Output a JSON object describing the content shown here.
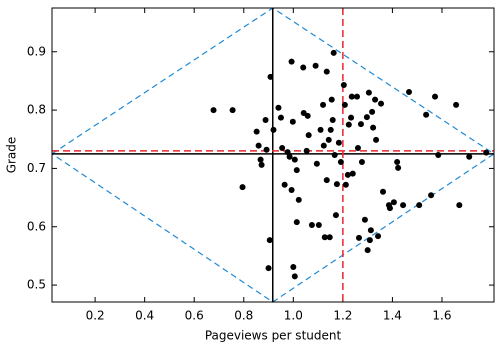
{
  "chart_data": {
    "type": "scatter",
    "xlabel": "Pageviews per student",
    "ylabel": "Grade",
    "xlim": [
      0.026,
      1.81
    ],
    "ylim": [
      0.471,
      0.975
    ],
    "xticks": [
      0.2,
      0.4,
      0.6,
      0.8,
      {
        "value": 1,
        "label": "1.0"
      },
      1.2,
      1.4,
      1.6
    ],
    "yticks": [
      0.5,
      0.6,
      0.7,
      0.8,
      0.9
    ],
    "color": "#000000",
    "x": [
      0.678,
      0.755,
      0.795,
      0.852,
      0.86,
      0.868,
      0.872,
      0.888,
      0.892,
      0.9,
      0.908,
      0.905,
      0.92,
      0.94,
      0.95,
      0.955,
      0.965,
      0.977,
      0.985,
      0.993,
      0.993,
      0.998,
      1.0,
      1.006,
      1.006,
      1.014,
      1.014,
      1.022,
      1.04,
      1.042,
      1.054,
      1.058,
      1.062,
      1.075,
      1.09,
      1.095,
      1.103,
      1.11,
      1.12,
      1.123,
      1.127,
      1.135,
      1.135,
      1.143,
      1.147,
      1.151,
      1.155,
      1.159,
      1.163,
      1.167,
      1.172,
      1.176,
      1.184,
      1.192,
      1.204,
      1.208,
      1.212,
      1.22,
      1.224,
      1.233,
      1.236,
      1.24,
      1.257,
      1.261,
      1.265,
      1.273,
      1.277,
      1.289,
      1.297,
      1.3,
      1.305,
      1.309,
      1.313,
      1.318,
      1.322,
      1.33,
      1.334,
      1.342,
      1.354,
      1.362,
      1.386,
      1.39,
      1.406,
      1.419,
      1.423,
      1.443,
      1.467,
      1.508,
      1.536,
      1.556,
      1.572,
      1.585,
      1.657,
      1.67,
      1.71,
      1.779
    ],
    "y": [
      0.8,
      0.8,
      0.668,
      0.763,
      0.739,
      0.715,
      0.706,
      0.783,
      0.732,
      0.529,
      0.857,
      0.577,
      0.766,
      0.804,
      0.787,
      0.735,
      0.672,
      0.728,
      0.72,
      0.663,
      0.883,
      0.78,
      0.531,
      0.515,
      0.715,
      0.697,
      0.608,
      0.646,
      0.873,
      0.795,
      0.73,
      0.79,
      0.757,
      0.603,
      0.876,
      0.708,
      0.603,
      0.766,
      0.809,
      0.739,
      0.582,
      0.68,
      0.866,
      0.749,
      0.582,
      0.766,
      0.818,
      0.783,
      0.898,
      0.723,
      0.62,
      0.673,
      0.744,
      0.711,
      0.843,
      0.809,
      0.672,
      0.689,
      0.775,
      0.787,
      0.823,
      0.691,
      0.823,
      0.735,
      0.581,
      0.776,
      0.711,
      0.612,
      0.788,
      0.56,
      0.83,
      0.577,
      0.594,
      0.797,
      0.77,
      0.818,
      0.749,
      0.584,
      0.811,
      0.66,
      0.637,
      0.632,
      0.642,
      0.711,
      0.701,
      0.637,
      0.831,
      0.637,
      0.792,
      0.654,
      0.823,
      0.723,
      0.809,
      0.637,
      0.72,
      0.727
    ],
    "reference_lines": [
      {
        "x": 0.917,
        "color": "#000000",
        "dashed": false
      },
      {
        "y": 0.725,
        "color": "#000000",
        "dashed": false
      },
      {
        "x": 1.2,
        "color": "#e8262b",
        "dashed": true
      },
      {
        "y": 0.73,
        "color": "#e8262b",
        "dashed": true
      }
    ],
    "outline": {
      "x": [
        0.026,
        0.917,
        1.81,
        0.917,
        0.026
      ],
      "y": [
        0.725,
        0.975,
        0.725,
        0.471,
        0.725
      ],
      "color": "#1f8ad6",
      "dashed": true
    }
  }
}
